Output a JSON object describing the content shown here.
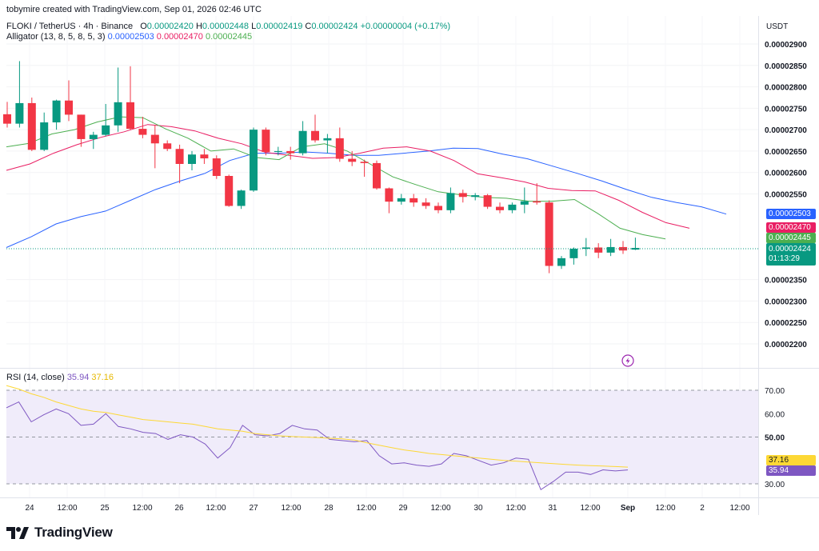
{
  "header": {
    "credit": "tobymire created with TradingView.com, Sep 01, 2026 02:46 UTC"
  },
  "legend": {
    "symbol": "FLOKI / TetherUS · 4h · Binance",
    "o_label": "O",
    "o_value": "0.00002420",
    "h_label": "H",
    "h_value": "0.00002448",
    "l_label": "L",
    "l_value": "0.00002419",
    "c_label": "C",
    "c_value": "0.00002424",
    "change": "+0.00000004 (+0.17%)",
    "alligator_label": "Alligator (13, 8, 5, 8, 5, 3)",
    "alligator_jaw": "0.00002503",
    "alligator_teeth": "0.00002470",
    "alligator_lips": "0.00002445",
    "rsi_label": "RSI (14, close)",
    "rsi_value": "35.94",
    "rsi_ma_value": "37.16"
  },
  "price_axis": {
    "currency": "USDT",
    "ticks": [
      "0.00002900",
      "0.00002850",
      "0.00002800",
      "0.00002750",
      "0.00002700",
      "0.00002650",
      "0.00002600",
      "0.00002550",
      "0.00002350",
      "0.00002300",
      "0.00002250",
      "0.00002200"
    ],
    "tag_jaw": "0.00002503",
    "tag_teeth": "0.00002470",
    "tag_lips": "0.00002445",
    "tag_last": "0.00002424",
    "tag_countdown": "01:13:29"
  },
  "rsi_axis": {
    "ticks": [
      "70.00",
      "60.00",
      "50.00",
      "30.00"
    ],
    "tag_ma": "37.16",
    "tag_rsi": "35.94"
  },
  "time_axis": [
    "24",
    "12:00",
    "25",
    "12:00",
    "26",
    "12:00",
    "27",
    "12:00",
    "28",
    "12:00",
    "29",
    "12:00",
    "30",
    "12:00",
    "31",
    "12:00",
    "Sep",
    "12:00",
    "2",
    "12:00"
  ],
  "footer": {
    "brand": "TradingView"
  },
  "colors": {
    "up": "#089981",
    "down": "#f23645",
    "jaw": "#2962ff",
    "teeth": "#e91e63",
    "lips": "#4caf50",
    "rsi": "#7e57c2",
    "rsi_ma": "#fdd835",
    "rsi_band": "#f0ecfa"
  },
  "chart_data": [
    {
      "type": "candlestick",
      "title": "FLOKI / TetherUS · 4h · Binance",
      "ylim": [
        2.18e-05,
        2.92e-05
      ],
      "x_labels": [
        "24",
        "25",
        "26",
        "27",
        "28",
        "29",
        "30",
        "31",
        "Sep",
        "2"
      ],
      "candles": [
        {
          "o": 2.736e-05,
          "h": 2.765e-05,
          "l": 2.705e-05,
          "c": 2.714e-05
        },
        {
          "o": 2.714e-05,
          "h": 2.86e-05,
          "l": 2.705e-05,
          "c": 2.762e-05
        },
        {
          "o": 2.762e-05,
          "h": 2.775e-05,
          "l": 2.65e-05,
          "c": 2.653e-05
        },
        {
          "o": 2.653e-05,
          "h": 2.74e-05,
          "l": 2.65e-05,
          "c": 2.717e-05
        },
        {
          "o": 2.717e-05,
          "h": 2.77e-05,
          "l": 2.7e-05,
          "c": 2.768e-05
        },
        {
          "o": 2.768e-05,
          "h": 2.815e-05,
          "l": 2.72e-05,
          "c": 2.735e-05
        },
        {
          "o": 2.735e-05,
          "h": 2.735e-05,
          "l": 2.66e-05,
          "c": 2.678e-05
        },
        {
          "o": 2.678e-05,
          "h": 2.695e-05,
          "l": 2.655e-05,
          "c": 2.688e-05
        },
        {
          "o": 2.688e-05,
          "h": 2.76e-05,
          "l": 2.685e-05,
          "c": 2.71e-05
        },
        {
          "o": 2.71e-05,
          "h": 2.845e-05,
          "l": 2.695e-05,
          "c": 2.764e-05
        },
        {
          "o": 2.764e-05,
          "h": 2.848e-05,
          "l": 2.7e-05,
          "c": 2.702e-05
        },
        {
          "o": 2.702e-05,
          "h": 2.73e-05,
          "l": 2.68e-05,
          "c": 2.688e-05
        },
        {
          "o": 2.688e-05,
          "h": 2.71e-05,
          "l": 2.61e-05,
          "c": 2.668e-05
        },
        {
          "o": 2.668e-05,
          "h": 2.675e-05,
          "l": 2.65e-05,
          "c": 2.655e-05
        },
        {
          "o": 2.655e-05,
          "h": 2.665e-05,
          "l": 2.575e-05,
          "c": 2.62e-05
        },
        {
          "o": 2.62e-05,
          "h": 2.65e-05,
          "l": 2.605e-05,
          "c": 2.642e-05
        },
        {
          "o": 2.642e-05,
          "h": 2.655e-05,
          "l": 2.62e-05,
          "c": 2.633e-05
        },
        {
          "o": 2.633e-05,
          "h": 2.64e-05,
          "l": 2.585e-05,
          "c": 2.592e-05
        },
        {
          "o": 2.592e-05,
          "h": 2.595e-05,
          "l": 2.52e-05,
          "c": 2.522e-05
        },
        {
          "o": 2.522e-05,
          "h": 2.56e-05,
          "l": 2.515e-05,
          "c": 2.558e-05
        },
        {
          "o": 2.558e-05,
          "h": 2.705e-05,
          "l": 2.555e-05,
          "c": 2.7e-05
        },
        {
          "o": 2.7e-05,
          "h": 2.705e-05,
          "l": 2.64e-05,
          "c": 2.648e-05
        },
        {
          "o": 2.648e-05,
          "h": 2.66e-05,
          "l": 2.64e-05,
          "c": 2.65e-05
        },
        {
          "o": 2.65e-05,
          "h": 2.66e-05,
          "l": 2.63e-05,
          "c": 2.645e-05
        },
        {
          "o": 2.645e-05,
          "h": 2.72e-05,
          "l": 2.64e-05,
          "c": 2.697e-05
        },
        {
          "o": 2.697e-05,
          "h": 2.735e-05,
          "l": 2.67e-05,
          "c": 2.675e-05
        },
        {
          "o": 2.675e-05,
          "h": 2.69e-05,
          "l": 2.645e-05,
          "c": 2.68e-05
        },
        {
          "o": 2.68e-05,
          "h": 2.705e-05,
          "l": 2.625e-05,
          "c": 2.632e-05
        },
        {
          "o": 2.632e-05,
          "h": 2.65e-05,
          "l": 2.615e-05,
          "c": 2.625e-05
        },
        {
          "o": 2.625e-05,
          "h": 2.63e-05,
          "l": 2.59e-05,
          "c": 2.622e-05
        },
        {
          "o": 2.622e-05,
          "h": 2.628e-05,
          "l": 2.56e-05,
          "c": 2.563e-05
        },
        {
          "o": 2.563e-05,
          "h": 2.565e-05,
          "l": 2.505e-05,
          "c": 2.532e-05
        },
        {
          "o": 2.532e-05,
          "h": 2.55e-05,
          "l": 2.525e-05,
          "c": 2.54e-05
        },
        {
          "o": 2.54e-05,
          "h": 2.55e-05,
          "l": 2.52e-05,
          "c": 2.53e-05
        },
        {
          "o": 2.53e-05,
          "h": 2.54e-05,
          "l": 2.515e-05,
          "c": 2.522e-05
        },
        {
          "o": 2.522e-05,
          "h": 2.53e-05,
          "l": 2.505e-05,
          "c": 2.512e-05
        },
        {
          "o": 2.512e-05,
          "h": 2.565e-05,
          "l": 2.505e-05,
          "c": 2.552e-05
        },
        {
          "o": 2.552e-05,
          "h": 2.56e-05,
          "l": 2.53e-05,
          "c": 2.543e-05
        },
        {
          "o": 2.543e-05,
          "h": 2.552e-05,
          "l": 2.535e-05,
          "c": 2.547e-05
        },
        {
          "o": 2.547e-05,
          "h": 2.55e-05,
          "l": 2.515e-05,
          "c": 2.52e-05
        },
        {
          "o": 2.52e-05,
          "h": 2.53e-05,
          "l": 2.505e-05,
          "c": 2.512e-05
        },
        {
          "o": 2.512e-05,
          "h": 2.53e-05,
          "l": 2.505e-05,
          "c": 2.525e-05
        },
        {
          "o": 2.525e-05,
          "h": 2.565e-05,
          "l": 2.505e-05,
          "c": 2.533e-05
        },
        {
          "o": 2.533e-05,
          "h": 2.575e-05,
          "l": 2.525e-05,
          "c": 2.53e-05
        },
        {
          "o": 2.53e-05,
          "h": 2.535e-05,
          "l": 2.365e-05,
          "c": 2.382e-05
        },
        {
          "o": 2.382e-05,
          "h": 2.405e-05,
          "l": 2.375e-05,
          "c": 2.4e-05
        },
        {
          "o": 2.4e-05,
          "h": 2.425e-05,
          "l": 2.385e-05,
          "c": 2.422e-05
        },
        {
          "o": 2.422e-05,
          "h": 2.447e-05,
          "l": 2.405e-05,
          "c": 2.425e-05
        },
        {
          "o": 2.425e-05,
          "h": 2.435e-05,
          "l": 2.4e-05,
          "c": 2.413e-05
        },
        {
          "o": 2.413e-05,
          "h": 2.445e-05,
          "l": 2.405e-05,
          "c": 2.426e-05
        },
        {
          "o": 2.426e-05,
          "h": 2.44e-05,
          "l": 2.41e-05,
          "c": 2.418e-05
        },
        {
          "o": 2.42e-05,
          "h": 2.448e-05,
          "l": 2.419e-05,
          "c": 2.424e-05
        }
      ],
      "alligator": {
        "jaw": [
          2.425e-05,
          2.45e-05,
          2.48e-05,
          2.497e-05,
          2.51e-05,
          2.535e-05,
          2.56e-05,
          2.58e-05,
          2.598e-05,
          2.628e-05,
          2.645e-05,
          2.645e-05,
          2.648e-05,
          2.645e-05,
          2.64e-05,
          2.64e-05,
          2.645e-05,
          2.65e-05,
          2.657e-05,
          2.656e-05,
          2.643e-05,
          2.632e-05,
          2.615e-05,
          2.598e-05,
          2.58e-05,
          2.56e-05,
          2.542e-05,
          2.53e-05,
          2.52e-05,
          2.503e-05
        ],
        "teeth": [
          2.605e-05,
          2.62e-05,
          2.645e-05,
          2.665e-05,
          2.682e-05,
          2.695e-05,
          2.712e-05,
          2.707e-05,
          2.697e-05,
          2.68e-05,
          2.667e-05,
          2.647e-05,
          2.64e-05,
          2.633e-05,
          2.635e-05,
          2.645e-05,
          2.657e-05,
          2.66e-05,
          2.65e-05,
          2.628e-05,
          2.597e-05,
          2.588e-05,
          2.578e-05,
          2.563e-05,
          2.558e-05,
          2.557e-05,
          2.535e-05,
          2.507e-05,
          2.483e-05,
          2.47e-05
        ],
        "lips": [
          2.66e-05,
          2.668e-05,
          2.69e-05,
          2.7e-05,
          2.718e-05,
          2.73e-05,
          2.728e-05,
          2.702e-05,
          2.68e-05,
          2.65e-05,
          2.655e-05,
          2.635e-05,
          2.63e-05,
          2.66e-05,
          2.667e-05,
          2.65e-05,
          2.62e-05,
          2.59e-05,
          2.572e-05,
          2.555e-05,
          2.548e-05,
          2.542e-05,
          2.54e-05,
          2.533e-05,
          2.533e-05,
          2.537e-05,
          2.505e-05,
          2.47e-05,
          2.455e-05,
          2.445e-05
        ]
      }
    },
    {
      "type": "line",
      "title": "RSI (14, close)",
      "ylim": [
        27,
        73
      ],
      "reference_lines": [
        70,
        50,
        30
      ],
      "series": [
        {
          "name": "RSI",
          "values": [
            62.5,
            65,
            56.5,
            59.5,
            62,
            60,
            55,
            55.5,
            60,
            54.5,
            53.5,
            52,
            51.5,
            49,
            51,
            50,
            47,
            41,
            45.5,
            55,
            51,
            50.5,
            51.5,
            55,
            53.5,
            53,
            49,
            48.5,
            48,
            48.5,
            42,
            38.5,
            39,
            38,
            37.5,
            38.5,
            43,
            42,
            40,
            38,
            39,
            41,
            40.5,
            27.5,
            31,
            35,
            35,
            34,
            36,
            35.5,
            35.94
          ]
        },
        {
          "name": "RSI MA",
          "values": [
            72,
            70.5,
            68.5,
            67,
            65,
            63.5,
            62,
            61,
            60.5,
            59.5,
            58.5,
            57.5,
            57,
            56.5,
            56,
            55.5,
            54.5,
            53.5,
            53,
            52.5,
            51.5,
            51,
            50.5,
            50.2,
            50,
            49.8,
            49.5,
            49.2,
            48.7,
            47.5,
            46.5,
            45.5,
            44.5,
            43.8,
            43,
            42.5,
            42,
            41.5,
            41,
            40.5,
            40,
            39.7,
            39.3,
            39,
            38.6,
            38.3,
            38,
            37.8,
            37.6,
            37.4,
            37.16
          ]
        }
      ]
    }
  ]
}
